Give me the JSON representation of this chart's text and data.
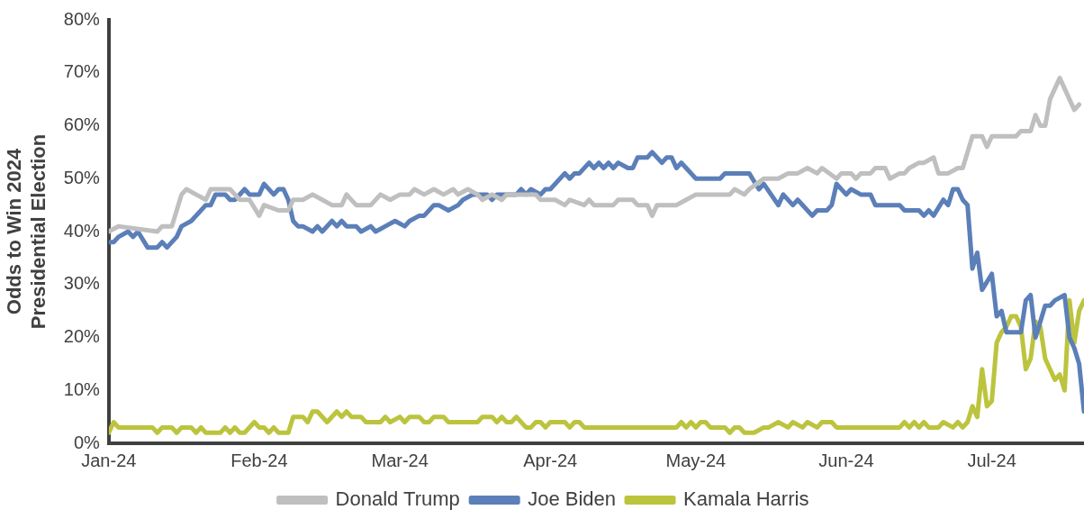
{
  "chart_data": {
    "type": "line",
    "ylabel": "Odds to Win 2024 Presidential Election",
    "legend": "bottom",
    "marker": "none",
    "line_style": "solid",
    "xlim": [
      "2024-01-01",
      "2024-07-20"
    ],
    "xticks": [
      {
        "value": "2024-01-01",
        "label": "Jan-24"
      },
      {
        "value": "2024-02-01",
        "label": "Feb-24"
      },
      {
        "value": "2024-03-01",
        "label": "Mar-24"
      },
      {
        "value": "2024-04-01",
        "label": "Apr-24"
      },
      {
        "value": "2024-05-01",
        "label": "May-24"
      },
      {
        "value": "2024-06-01",
        "label": "Jun-24"
      },
      {
        "value": "2024-07-01",
        "label": "Jul-24"
      }
    ],
    "ylim": [
      0,
      80
    ],
    "yticks": [
      {
        "value": 0,
        "label": "0%"
      },
      {
        "value": 10,
        "label": "10%"
      },
      {
        "value": 20,
        "label": "20%"
      },
      {
        "value": 30,
        "label": "30%"
      },
      {
        "value": 40,
        "label": "40%"
      },
      {
        "value": 50,
        "label": "50%"
      },
      {
        "value": 60,
        "label": "60%"
      },
      {
        "value": 70,
        "label": "70%"
      },
      {
        "value": 80,
        "label": "80%"
      }
    ],
    "series": [
      {
        "name": "Donald Trump",
        "color": "#bfbfbf",
        "x": [
          "2024-01-01",
          "2024-01-03",
          "2024-01-11",
          "2024-01-12",
          "2024-01-14",
          "2024-01-16",
          "2024-01-17",
          "2024-01-19",
          "2024-01-21",
          "2024-01-22",
          "2024-01-24",
          "2024-01-26",
          "2024-01-28",
          "2024-01-30",
          "2024-02-01",
          "2024-02-02",
          "2024-02-05",
          "2024-02-07",
          "2024-02-08",
          "2024-02-10",
          "2024-02-12",
          "2024-02-14",
          "2024-02-16",
          "2024-02-18",
          "2024-02-19",
          "2024-02-21",
          "2024-02-24",
          "2024-02-26",
          "2024-02-28",
          "2024-03-01",
          "2024-03-03",
          "2024-03-04",
          "2024-03-06",
          "2024-03-08",
          "2024-03-10",
          "2024-03-12",
          "2024-03-13",
          "2024-03-15",
          "2024-03-17",
          "2024-03-18",
          "2024-03-20",
          "2024-03-22",
          "2024-03-23",
          "2024-03-29",
          "2024-03-30",
          "2024-04-02",
          "2024-04-04",
          "2024-04-05",
          "2024-04-08",
          "2024-04-09",
          "2024-04-10",
          "2024-04-14",
          "2024-04-15",
          "2024-04-18",
          "2024-04-19",
          "2024-04-21",
          "2024-04-22",
          "2024-04-23",
          "2024-04-27",
          "2024-04-29",
          "2024-05-01",
          "2024-05-08",
          "2024-05-09",
          "2024-05-11",
          "2024-05-12",
          "2024-05-15",
          "2024-05-18",
          "2024-05-20",
          "2024-05-22",
          "2024-05-24",
          "2024-05-26",
          "2024-05-27",
          "2024-05-30",
          "2024-05-31",
          "2024-06-02",
          "2024-06-03",
          "2024-06-04",
          "2024-06-06",
          "2024-06-07",
          "2024-06-09",
          "2024-06-10",
          "2024-06-12",
          "2024-06-13",
          "2024-06-14",
          "2024-06-16",
          "2024-06-17",
          "2024-06-19",
          "2024-06-20",
          "2024-06-22",
          "2024-06-24",
          "2024-06-25",
          "2024-06-27",
          "2024-06-29",
          "2024-06-30",
          "2024-07-01",
          "2024-07-06",
          "2024-07-07",
          "2024-07-09",
          "2024-07-10",
          "2024-07-11",
          "2024-07-12",
          "2024-07-13",
          "2024-07-15",
          "2024-07-16",
          "2024-07-18",
          "2024-07-19"
        ],
        "values": [
          40,
          41,
          40,
          41,
          41,
          47,
          48,
          47,
          46,
          48,
          48,
          48,
          46,
          46,
          43,
          45,
          44,
          44,
          46,
          46,
          47,
          46,
          45,
          45,
          47,
          45,
          45,
          47,
          46,
          47,
          47,
          48,
          47,
          48,
          47,
          48,
          47,
          48,
          47,
          46,
          47,
          46,
          47,
          47,
          46,
          46,
          45,
          46,
          45,
          46,
          45,
          45,
          46,
          46,
          45,
          45,
          43,
          45,
          45,
          46,
          47,
          47,
          48,
          47,
          48,
          50,
          50,
          51,
          51,
          52,
          51,
          52,
          50,
          51,
          51,
          50,
          51,
          51,
          52,
          52,
          50,
          51,
          51,
          52,
          53,
          53,
          54,
          51,
          51,
          52,
          52,
          58,
          58,
          56,
          58,
          58,
          59,
          59,
          62,
          60,
          60,
          65,
          69,
          67,
          63,
          64
        ]
      },
      {
        "name": "Joe Biden",
        "color": "#5b7fb8",
        "x": [
          "2024-01-01",
          "2024-01-02",
          "2024-01-03",
          "2024-01-05",
          "2024-01-06",
          "2024-01-07",
          "2024-01-09",
          "2024-01-11",
          "2024-01-12",
          "2024-01-13",
          "2024-01-15",
          "2024-01-16",
          "2024-01-18",
          "2024-01-21",
          "2024-01-22",
          "2024-01-23",
          "2024-01-25",
          "2024-01-26",
          "2024-01-27",
          "2024-01-29",
          "2024-01-30",
          "2024-02-01",
          "2024-02-02",
          "2024-02-04",
          "2024-02-05",
          "2024-02-06",
          "2024-02-07",
          "2024-02-08",
          "2024-02-09",
          "2024-02-10",
          "2024-02-12",
          "2024-02-13",
          "2024-02-14",
          "2024-02-16",
          "2024-02-17",
          "2024-02-18",
          "2024-02-19",
          "2024-02-21",
          "2024-02-22",
          "2024-02-24",
          "2024-02-25",
          "2024-02-27",
          "2024-02-29",
          "2024-03-02",
          "2024-03-03",
          "2024-03-05",
          "2024-03-06",
          "2024-03-08",
          "2024-03-09",
          "2024-03-11",
          "2024-03-13",
          "2024-03-14",
          "2024-03-16",
          "2024-03-19",
          "2024-03-20",
          "2024-03-21",
          "2024-03-25",
          "2024-03-26",
          "2024-03-27",
          "2024-03-28",
          "2024-03-30",
          "2024-03-31",
          "2024-04-01",
          "2024-04-04",
          "2024-04-05",
          "2024-04-06",
          "2024-04-07",
          "2024-04-09",
          "2024-04-10",
          "2024-04-11",
          "2024-04-12",
          "2024-04-13",
          "2024-04-14",
          "2024-04-15",
          "2024-04-17",
          "2024-04-18",
          "2024-04-19",
          "2024-04-21",
          "2024-04-22",
          "2024-04-24",
          "2024-04-25",
          "2024-04-26",
          "2024-04-27",
          "2024-04-28",
          "2024-04-29",
          "2024-05-01",
          "2024-05-06",
          "2024-05-07",
          "2024-05-12",
          "2024-05-14",
          "2024-05-15",
          "2024-05-18",
          "2024-05-19",
          "2024-05-21",
          "2024-05-22",
          "2024-05-25",
          "2024-05-26",
          "2024-05-28",
          "2024-05-29",
          "2024-05-30",
          "2024-06-01",
          "2024-06-02",
          "2024-06-04",
          "2024-06-06",
          "2024-06-07",
          "2024-06-12",
          "2024-06-13",
          "2024-06-16",
          "2024-06-17",
          "2024-06-18",
          "2024-06-19",
          "2024-06-21",
          "2024-06-22",
          "2024-06-23",
          "2024-06-24",
          "2024-06-25",
          "2024-06-26",
          "2024-06-27",
          "2024-06-28",
          "2024-06-29",
          "2024-07-01",
          "2024-07-02",
          "2024-07-03",
          "2024-07-04",
          "2024-07-07",
          "2024-07-08",
          "2024-07-09",
          "2024-07-10",
          "2024-07-12",
          "2024-07-13",
          "2024-07-14",
          "2024-07-16",
          "2024-07-17",
          "2024-07-18",
          "2024-07-19",
          "2024-07-20"
        ],
        "values": [
          38,
          38,
          39,
          40,
          39,
          40,
          37,
          37,
          38,
          37,
          39,
          41,
          42,
          45,
          45,
          47,
          47,
          46,
          46,
          48,
          47,
          47,
          49,
          47,
          48,
          48,
          46,
          42,
          41,
          41,
          40,
          41,
          40,
          42,
          41,
          42,
          41,
          41,
          40,
          41,
          40,
          41,
          42,
          41,
          42,
          43,
          43,
          45,
          45,
          44,
          45,
          46,
          47,
          47,
          46,
          47,
          47,
          48,
          47,
          48,
          47,
          48,
          48,
          51,
          50,
          51,
          51,
          53,
          52,
          53,
          52,
          53,
          52,
          53,
          52,
          52,
          54,
          54,
          55,
          53,
          54,
          54,
          52,
          53,
          52,
          50,
          50,
          51,
          51,
          48,
          49,
          45,
          47,
          45,
          46,
          43,
          44,
          44,
          45,
          49,
          47,
          48,
          47,
          47,
          45,
          45,
          44,
          44,
          43,
          44,
          43,
          46,
          45,
          48,
          48,
          46,
          45,
          33,
          36,
          29,
          32,
          24,
          25,
          21,
          21,
          27,
          28,
          20,
          26,
          26,
          27,
          28,
          20,
          18,
          15,
          6
        ]
      },
      {
        "name": "Kamala Harris",
        "color": "#bcc43e",
        "x": [
          "2024-01-01",
          "2024-01-02",
          "2024-01-03",
          "2024-01-10",
          "2024-01-11",
          "2024-01-12",
          "2024-01-14",
          "2024-01-15",
          "2024-01-16",
          "2024-01-18",
          "2024-01-19",
          "2024-01-20",
          "2024-01-21",
          "2024-01-24",
          "2024-01-25",
          "2024-01-26",
          "2024-01-27",
          "2024-01-28",
          "2024-01-29",
          "2024-01-31",
          "2024-02-01",
          "2024-02-02",
          "2024-02-03",
          "2024-02-04",
          "2024-02-05",
          "2024-02-07",
          "2024-02-08",
          "2024-02-10",
          "2024-02-11",
          "2024-02-12",
          "2024-02-13",
          "2024-02-15",
          "2024-02-17",
          "2024-02-18",
          "2024-02-19",
          "2024-02-20",
          "2024-02-22",
          "2024-02-23",
          "2024-02-26",
          "2024-02-27",
          "2024-02-28",
          "2024-03-01",
          "2024-03-02",
          "2024-03-03",
          "2024-03-05",
          "2024-03-06",
          "2024-03-07",
          "2024-03-08",
          "2024-03-10",
          "2024-03-11",
          "2024-03-17",
          "2024-03-18",
          "2024-03-20",
          "2024-03-21",
          "2024-03-22",
          "2024-03-23",
          "2024-03-24",
          "2024-03-25",
          "2024-03-27",
          "2024-03-28",
          "2024-03-29",
          "2024-03-30",
          "2024-03-31",
          "2024-04-01",
          "2024-04-04",
          "2024-04-05",
          "2024-04-06",
          "2024-04-07",
          "2024-04-08",
          "2024-04-27",
          "2024-04-28",
          "2024-04-29",
          "2024-04-30",
          "2024-05-01",
          "2024-05-02",
          "2024-05-03",
          "2024-05-04",
          "2024-05-07",
          "2024-05-08",
          "2024-05-09",
          "2024-05-10",
          "2024-05-11",
          "2024-05-13",
          "2024-05-15",
          "2024-05-16",
          "2024-05-18",
          "2024-05-20",
          "2024-05-21",
          "2024-05-23",
          "2024-05-24",
          "2024-05-26",
          "2024-05-27",
          "2024-05-29",
          "2024-05-30",
          "2024-06-12",
          "2024-06-13",
          "2024-06-14",
          "2024-06-15",
          "2024-06-16",
          "2024-06-17",
          "2024-06-18",
          "2024-06-20",
          "2024-06-21",
          "2024-06-23",
          "2024-06-24",
          "2024-06-25",
          "2024-06-26",
          "2024-06-27",
          "2024-06-28",
          "2024-06-29",
          "2024-06-30",
          "2024-07-01",
          "2024-07-02",
          "2024-07-03",
          "2024-07-04",
          "2024-07-05",
          "2024-07-06",
          "2024-07-07",
          "2024-07-08",
          "2024-07-09",
          "2024-07-10",
          "2024-07-11",
          "2024-07-12",
          "2024-07-14",
          "2024-07-15",
          "2024-07-16",
          "2024-07-17",
          "2024-07-18",
          "2024-07-19",
          "2024-07-20"
        ],
        "values": [
          2,
          4,
          3,
          3,
          2,
          3,
          3,
          2,
          3,
          3,
          2,
          3,
          2,
          2,
          3,
          2,
          3,
          2,
          2,
          4,
          3,
          3,
          2,
          3,
          2,
          2,
          5,
          5,
          4,
          6,
          6,
          4,
          6,
          5,
          6,
          5,
          5,
          4,
          4,
          5,
          4,
          5,
          4,
          5,
          5,
          4,
          4,
          5,
          5,
          4,
          4,
          5,
          5,
          4,
          5,
          4,
          4,
          5,
          3,
          3,
          4,
          4,
          3,
          4,
          4,
          3,
          4,
          4,
          3,
          3,
          4,
          3,
          4,
          3,
          4,
          4,
          3,
          3,
          2,
          3,
          3,
          2,
          2,
          3,
          3,
          4,
          3,
          4,
          3,
          4,
          3,
          4,
          4,
          3,
          3,
          4,
          3,
          4,
          3,
          4,
          3,
          3,
          4,
          3,
          4,
          3,
          4,
          7,
          5,
          14,
          7,
          8,
          19,
          21,
          22,
          24,
          24,
          22,
          14,
          16,
          23,
          22,
          16,
          12,
          13,
          10,
          27,
          19,
          25,
          27
        ]
      }
    ]
  }
}
